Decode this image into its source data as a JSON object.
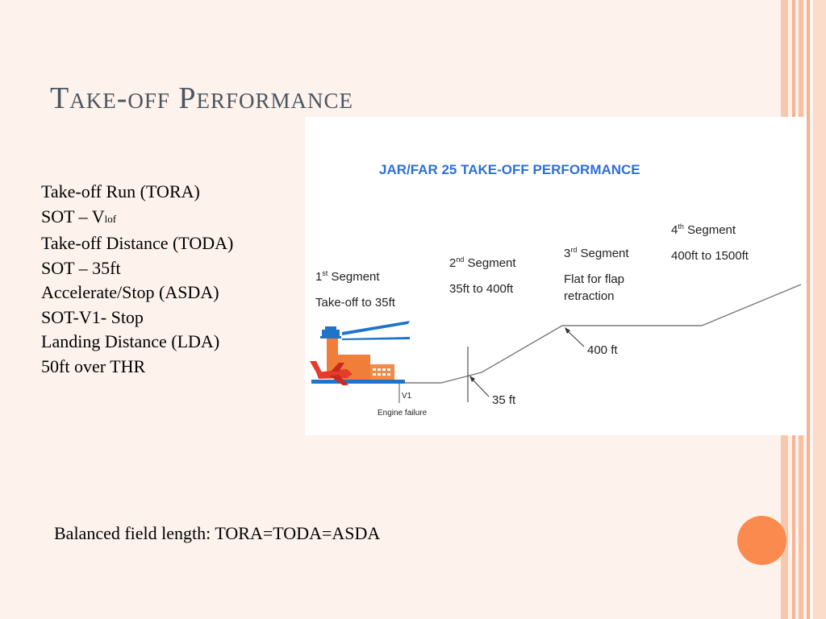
{
  "slide": {
    "title": "Take-off Performance",
    "bullets": [
      {
        "text": "Take-off Run (TORA)"
      },
      {
        "text": "SOT – V",
        "sub": "lof"
      },
      {
        "text": "Take-off Distance (TODA)"
      },
      {
        "text": "SOT – 35ft"
      },
      {
        "text": "Accelerate/Stop (ASDA)"
      },
      {
        "text": "SOT-V1- Stop"
      },
      {
        "text": "Landing Distance (LDA)"
      },
      {
        "text": "50ft over THR"
      }
    ],
    "footer": "Balanced field length: TORA=TODA=ASDA"
  },
  "diagram": {
    "title": "JAR/FAR 25 TAKE-OFF PERFORMANCE",
    "segments": [
      {
        "num": "1",
        "sup": "st",
        "label": " Segment",
        "desc": [
          "Take-off to 35ft"
        ]
      },
      {
        "num": "2",
        "sup": "nd",
        "label": " Segment",
        "desc": [
          "35ft to 400ft"
        ]
      },
      {
        "num": "3",
        "sup": "rd",
        "label": " Segment",
        "desc": [
          "Flat for flap",
          "retraction"
        ]
      },
      {
        "num": "4",
        "sup": "th",
        "label": "  Segment",
        "desc": [
          "400ft to 1500ft"
        ]
      }
    ],
    "v1_label": "V1",
    "engine_failure": "Engine failure",
    "marker_35": "35 ft",
    "marker_400": "400 ft"
  },
  "colors": {
    "background": "#fdf2ec",
    "title": "#4b5560",
    "diagram_title": "#2e6fd8",
    "accent_orange": "#fb8a4e",
    "stripe": "#f6b394",
    "airport_blue": "#1f74c9",
    "airport_orange": "#f07d3a",
    "plane_red": "#e53b2c"
  }
}
